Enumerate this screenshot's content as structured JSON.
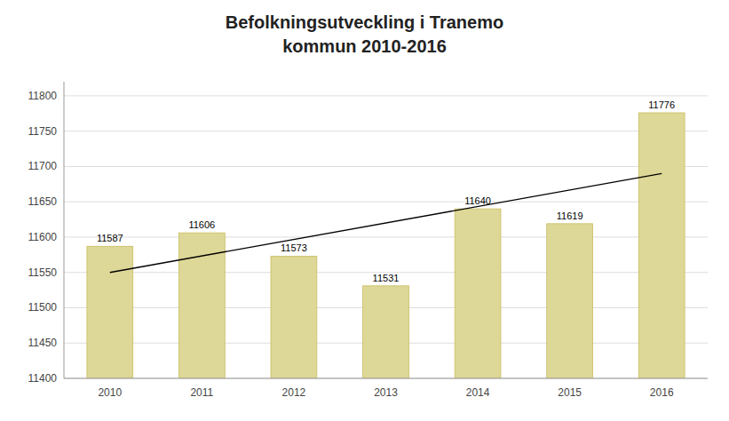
{
  "chart_data": {
    "type": "bar",
    "title": "Befolkningsutveckling i Tranemo\nkommun 2010-2016",
    "categories": [
      "2010",
      "2011",
      "2012",
      "2013",
      "2014",
      "2015",
      "2016"
    ],
    "values": [
      11587,
      11606,
      11573,
      11531,
      11640,
      11619,
      11776
    ],
    "color": "#ddd897",
    "data_labels": true,
    "trend": {
      "values": [
        11550,
        11690
      ],
      "color": "#000000"
    },
    "ylim": [
      11400,
      11820
    ],
    "yticks": [
      11400,
      11450,
      11500,
      11550,
      11600,
      11650,
      11700,
      11750,
      11800
    ],
    "grid": true
  }
}
